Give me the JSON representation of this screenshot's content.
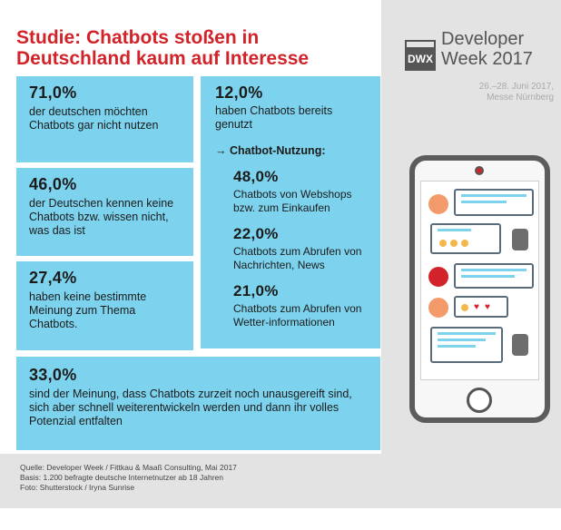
{
  "title": {
    "line1": "Studie: Chatbots stoßen in",
    "line2": "Deutschland kaum auf Interesse"
  },
  "stats": {
    "s1": {
      "pct": "71,0%",
      "text": "der deutschen möchten Chatbots gar nicht nutzen"
    },
    "s2": {
      "pct": "46,0%",
      "text": "der Deutschen kennen keine Chatbots bzw. wissen nicht, was das ist"
    },
    "s3": {
      "pct": "27,4%",
      "text": "haben keine bestimmte Meinung zum Thema Chatbots."
    },
    "s4": {
      "pct": "12,0%",
      "text": "haben Chatbots bereits genutzt"
    },
    "usage_head": "→ Chatbot-Nutzung:",
    "u1": {
      "pct": "48,0%",
      "text": "Chatbots von Webshops bzw. zum Einkaufen"
    },
    "u2": {
      "pct": "22,0%",
      "text": "Chatbots zum Abrufen von Nachrichten, News"
    },
    "u3": {
      "pct": "21,0%",
      "text": "Chatbots zum Abrufen von Wetter-informationen"
    },
    "s5": {
      "pct": "33,0%",
      "text": "sind der Meinung, dass Chatbots zurzeit noch unausgereift sind, sich aber schnell weiterentwickeln werden und dann ihr volles Potenzial entfalten"
    }
  },
  "source": {
    "line1": "Quelle: Developer Week / Fittkau & Maaß Consulting, Mai 2017",
    "line2": "Basis: 1.200 befragte deutsche Internetnutzer ab 18 Jahren",
    "line3": "Foto: Shutterstock / Iryna Sunrise"
  },
  "logo": {
    "badge": "DWX",
    "name1": "Developer",
    "name2": "Week 2017",
    "date": "26.–28. Juni 2017,",
    "venue": "Messe Nürnberg"
  },
  "colors": {
    "accent": "#d2232a",
    "box": "#7dd3ee",
    "grey": "#e3e3e3"
  },
  "icons": [
    "phone-illustration",
    "chat-bubble-icon",
    "robot-icon",
    "avatar-icon",
    "heart-icon"
  ]
}
